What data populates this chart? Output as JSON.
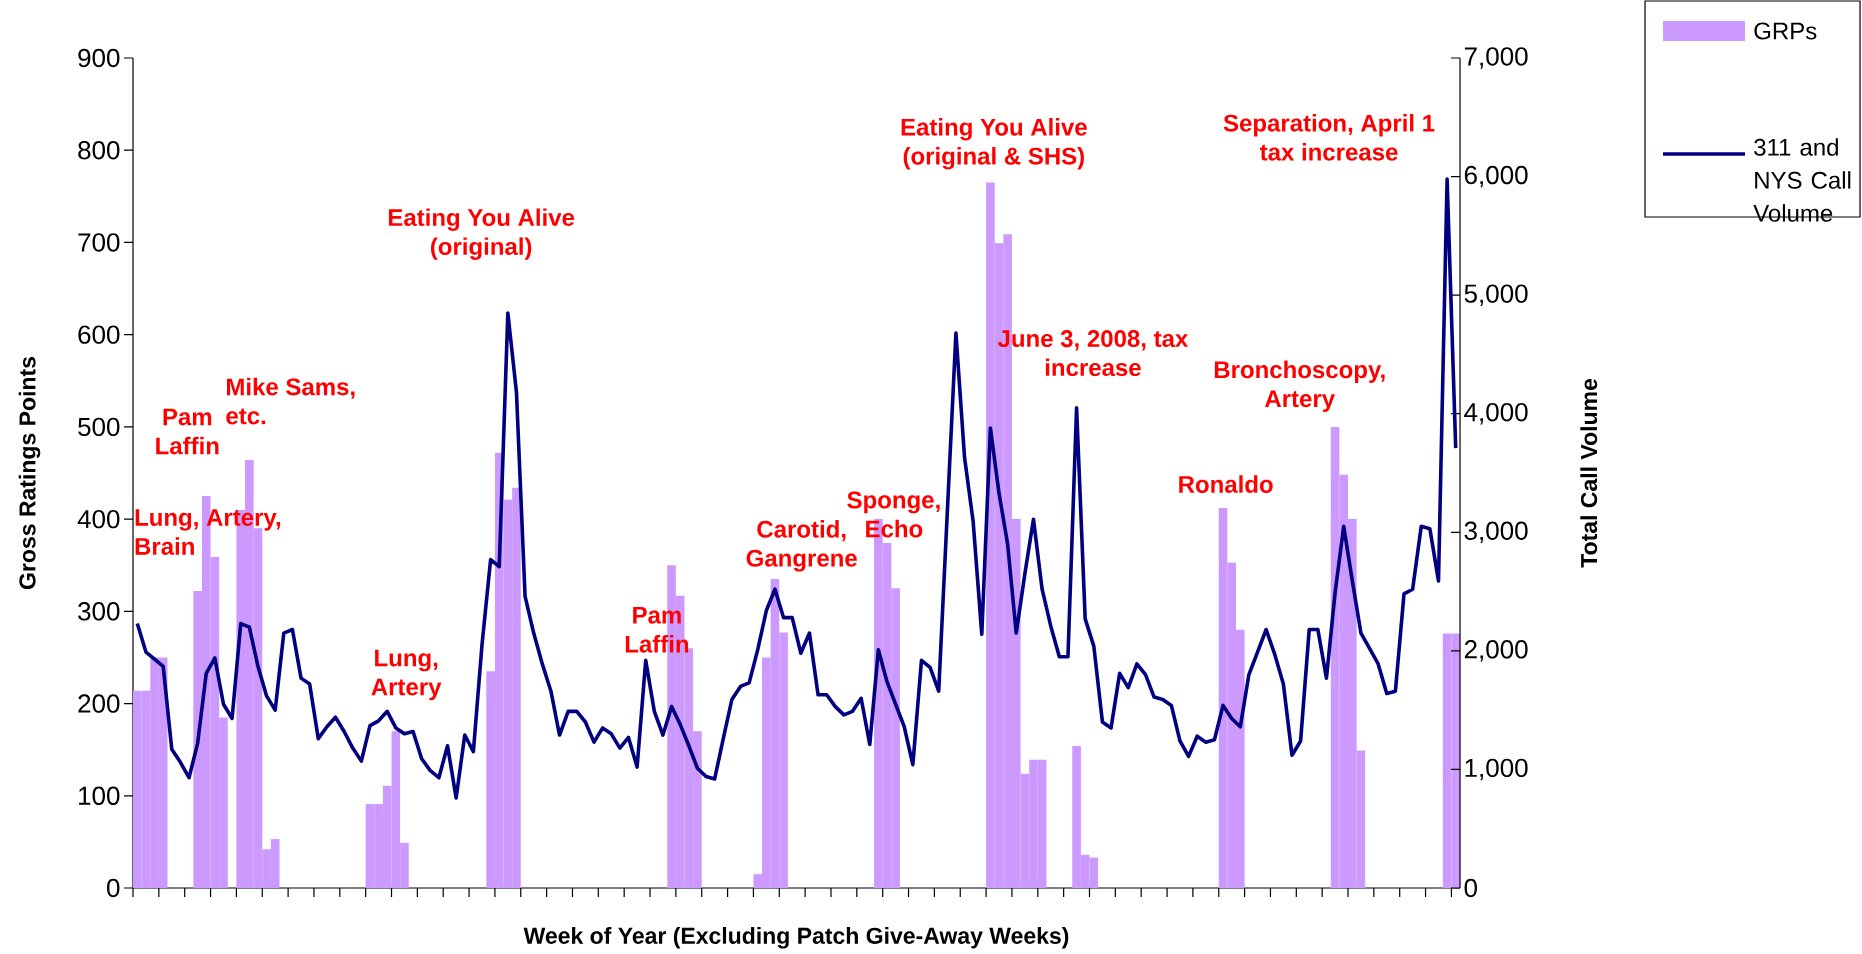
{
  "chart_data": {
    "type": "bar",
    "xlabel": "Week of Year (Excluding Patch Give-Away Weeks)",
    "ylabel": "Gross Ratings Points",
    "y2label": "Total Call Volume",
    "categories": [
      null,
      null,
      null,
      null,
      null,
      null,
      null,
      null,
      null,
      null,
      null,
      null,
      null,
      null,
      null,
      null,
      null,
      null,
      null,
      null,
      null,
      null,
      null,
      null,
      null,
      null,
      null,
      null,
      null,
      null,
      null,
      null,
      null,
      null,
      null,
      null,
      null,
      null,
      null,
      null,
      null,
      null,
      null,
      null,
      null,
      null,
      null,
      null,
      null,
      null,
      null,
      null,
      null,
      null,
      null,
      null,
      null,
      null,
      null,
      null,
      null,
      null,
      null,
      null,
      null,
      null,
      null,
      null,
      null,
      null,
      null,
      null,
      null,
      null,
      null,
      null,
      null,
      null,
      null,
      null,
      null,
      null,
      null,
      null,
      null,
      null,
      null,
      null,
      null,
      null,
      null,
      null,
      null,
      null,
      null,
      null,
      null,
      null,
      null,
      null,
      null,
      null,
      null,
      null,
      null,
      null,
      null,
      null,
      null,
      null,
      null,
      null,
      null,
      null,
      null,
      null,
      null,
      null,
      null,
      null,
      null,
      null,
      null,
      null,
      null,
      null,
      null,
      null,
      null,
      null,
      null,
      null,
      null,
      null,
      null,
      null,
      null,
      null,
      null,
      null,
      null,
      null,
      null,
      null,
      null,
      null,
      null,
      null,
      null,
      null,
      null,
      null,
      null,
      null
    ],
    "series": [
      {
        "name": "GRPs",
        "color": "#cc99ff",
        "values": [
          214,
          214,
          250,
          250,
          null,
          null,
          null,
          322,
          425,
          359,
          185,
          null,
          410,
          464,
          390,
          42,
          53,
          null,
          null,
          null,
          null,
          null,
          null,
          null,
          null,
          null,
          null,
          91,
          91,
          111,
          170,
          49,
          null,
          null,
          null,
          null,
          null,
          null,
          null,
          null,
          null,
          235,
          472,
          421,
          434,
          null,
          null,
          null,
          null,
          null,
          null,
          null,
          null,
          null,
          null,
          null,
          null,
          null,
          null,
          null,
          null,
          null,
          350,
          317,
          260,
          170,
          null,
          null,
          null,
          null,
          null,
          null,
          15,
          250,
          335,
          277,
          null,
          null,
          null,
          null,
          null,
          null,
          null,
          null,
          null,
          null,
          400,
          374,
          325,
          null,
          null,
          null,
          null,
          null,
          null,
          null,
          null,
          null,
          null,
          765,
          699,
          709,
          400,
          124,
          139,
          139,
          null,
          null,
          null,
          154,
          36,
          33,
          null,
          null,
          null,
          null,
          null,
          null,
          null,
          null,
          null,
          null,
          null,
          null,
          null,
          null,
          412,
          353,
          280,
          null,
          null,
          null,
          null,
          null,
          null,
          null,
          null,
          null,
          null,
          500,
          448,
          400,
          149,
          null,
          null,
          null,
          null,
          null,
          null,
          null,
          null,
          null,
          276,
          276
        ]
      },
      {
        "name": "311 and NYS Call Volume",
        "type": "line",
        "axis": "y2",
        "color": "#000080",
        "values": [
          2230,
          1990,
          1930,
          1870,
          1170,
          1060,
          930,
          1220,
          1810,
          1940,
          1550,
          1430,
          2230,
          2200,
          1870,
          1620,
          1500,
          2150,
          2180,
          1770,
          1720,
          1260,
          1360,
          1440,
          1320,
          1180,
          1070,
          1370,
          1410,
          1490,
          1350,
          1300,
          1320,
          1090,
          990,
          930,
          1200,
          760,
          1290,
          1150,
          2050,
          2770,
          2710,
          4850,
          4180,
          2460,
          2150,
          1890,
          1660,
          1290,
          1490,
          1490,
          1400,
          1230,
          1350,
          1300,
          1180,
          1270,
          1020,
          1920,
          1490,
          1290,
          1530,
          1380,
          1200,
          1010,
          940,
          920,
          1260,
          1590,
          1700,
          1730,
          2010,
          2340,
          2520,
          2280,
          2280,
          1980,
          2150,
          1630,
          1630,
          1530,
          1460,
          1490,
          1600,
          1210,
          2010,
          1740,
          1550,
          1360,
          1040,
          1920,
          1860,
          1660,
          3170,
          4680,
          3630,
          3090,
          2140,
          3880,
          3330,
          2900,
          2150,
          2650,
          3110,
          2520,
          2210,
          1950,
          1950,
          4050,
          2270,
          2040,
          1400,
          1350,
          1810,
          1690,
          1890,
          1800,
          1610,
          1590,
          1540,
          1240,
          1110,
          1280,
          1230,
          1250,
          1540,
          1430,
          1360,
          1800,
          1990,
          2180,
          1970,
          1720,
          1120,
          1240,
          2180,
          2180,
          1770,
          2490,
          3050,
          2590,
          2150,
          2020,
          1890,
          1640,
          1660,
          2480,
          2520,
          3050,
          3030,
          2590,
          5980,
          3710
        ]
      }
    ],
    "ylim": [
      0,
      900
    ],
    "yticks": [
      0,
      100,
      200,
      300,
      400,
      500,
      600,
      700,
      800,
      900
    ],
    "y2lim": [
      0,
      7000
    ],
    "y2ticks": [
      0,
      {
        "value": 1000,
        "label": "1,000"
      },
      {
        "value": 2000,
        "label": "2,000"
      },
      {
        "value": 3000,
        "label": "3,000"
      },
      {
        "value": 4000,
        "label": "4,000"
      },
      {
        "value": 5000,
        "label": "5,000"
      },
      {
        "value": 6000,
        "label": "6,000"
      },
      {
        "value": 7000,
        "label": "7,000"
      }
    ],
    "legend": "top right",
    "annotations": [
      "Lung, Artery, Brain",
      "Pam Laffin",
      "Mike Sams, etc.",
      "Lung, Artery",
      "Eating You Alive (original)",
      "Pam Laffin",
      "Carotid, Gangrene",
      "Sponge, Echo",
      "Eating You Alive (original & SHS)",
      "June 3, 2008, tax increase",
      "Ronaldo",
      "Bronchoscopy, Artery",
      "Separation, April 1 tax increase"
    ]
  }
}
